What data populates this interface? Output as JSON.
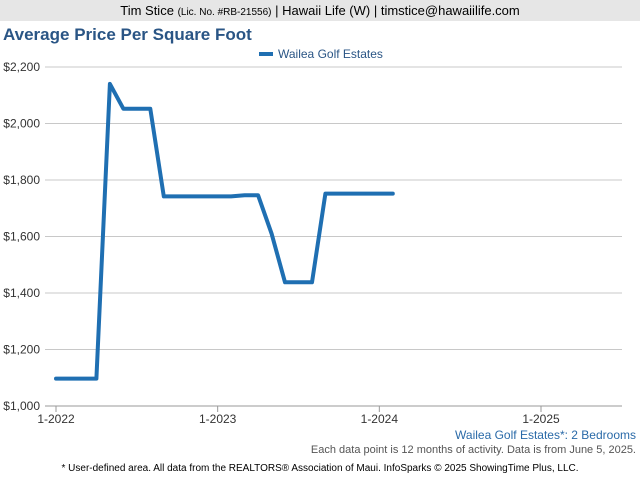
{
  "header": {
    "agent_name": "Tim Stice",
    "license": "(Lic. No. #RB-21556)",
    "company_email": "| Hawaii Life (W) | timstice@hawaiilife.com"
  },
  "chart_data": {
    "type": "line",
    "title": "Average Price Per Square Foot",
    "xlabel": "",
    "ylabel": "",
    "x_ticks": [
      "1-2022",
      "1-2023",
      "1-2024",
      "1-2025"
    ],
    "y_ticks": [
      "$1,000",
      "$1,200",
      "$1,400",
      "$1,600",
      "$1,800",
      "$2,000",
      "$2,200"
    ],
    "ylim": [
      1000,
      2200
    ],
    "xlim": [
      "2022-01",
      "2025-05"
    ],
    "grid": "horizontal",
    "legend_position": "top-center",
    "series": [
      {
        "name": "Wailea Golf Estates",
        "color": "#1f6fb2",
        "points": [
          {
            "x": "2022-01",
            "y": 1097
          },
          {
            "x": "2022-02",
            "y": 1097
          },
          {
            "x": "2022-03",
            "y": 1097
          },
          {
            "x": "2022-04",
            "y": 1097
          },
          {
            "x": "2022-05",
            "y": 2140
          },
          {
            "x": "2022-06",
            "y": 2052
          },
          {
            "x": "2022-07",
            "y": 2052
          },
          {
            "x": "2022-08",
            "y": 2052
          },
          {
            "x": "2022-09",
            "y": 1742
          },
          {
            "x": "2022-10",
            "y": 1742
          },
          {
            "x": "2022-11",
            "y": 1742
          },
          {
            "x": "2022-12",
            "y": 1742
          },
          {
            "x": "2023-01",
            "y": 1742
          },
          {
            "x": "2023-02",
            "y": 1742
          },
          {
            "x": "2023-03",
            "y": 1746
          },
          {
            "x": "2023-04",
            "y": 1746
          },
          {
            "x": "2023-05",
            "y": 1610
          },
          {
            "x": "2023-06",
            "y": 1438
          },
          {
            "x": "2023-07",
            "y": 1438
          },
          {
            "x": "2023-08",
            "y": 1438
          },
          {
            "x": "2023-09",
            "y": 1752
          },
          {
            "x": "2023-10",
            "y": 1752
          },
          {
            "x": "2023-11",
            "y": 1752
          },
          {
            "x": "2023-12",
            "y": 1752
          },
          {
            "x": "2024-01",
            "y": 1752
          },
          {
            "x": "2024-02",
            "y": 1752
          }
        ]
      }
    ]
  },
  "captions": {
    "area_label": "Wailea Golf Estates*: 2 Bedrooms",
    "note": "Each data point is 12 months of activity. Data is from June 5, 2025."
  },
  "footer": {
    "text": "* User-defined area. All data from the REALTORS® Association of Maui. InfoSparks © 2025 ShowingTime Plus, LLC."
  }
}
